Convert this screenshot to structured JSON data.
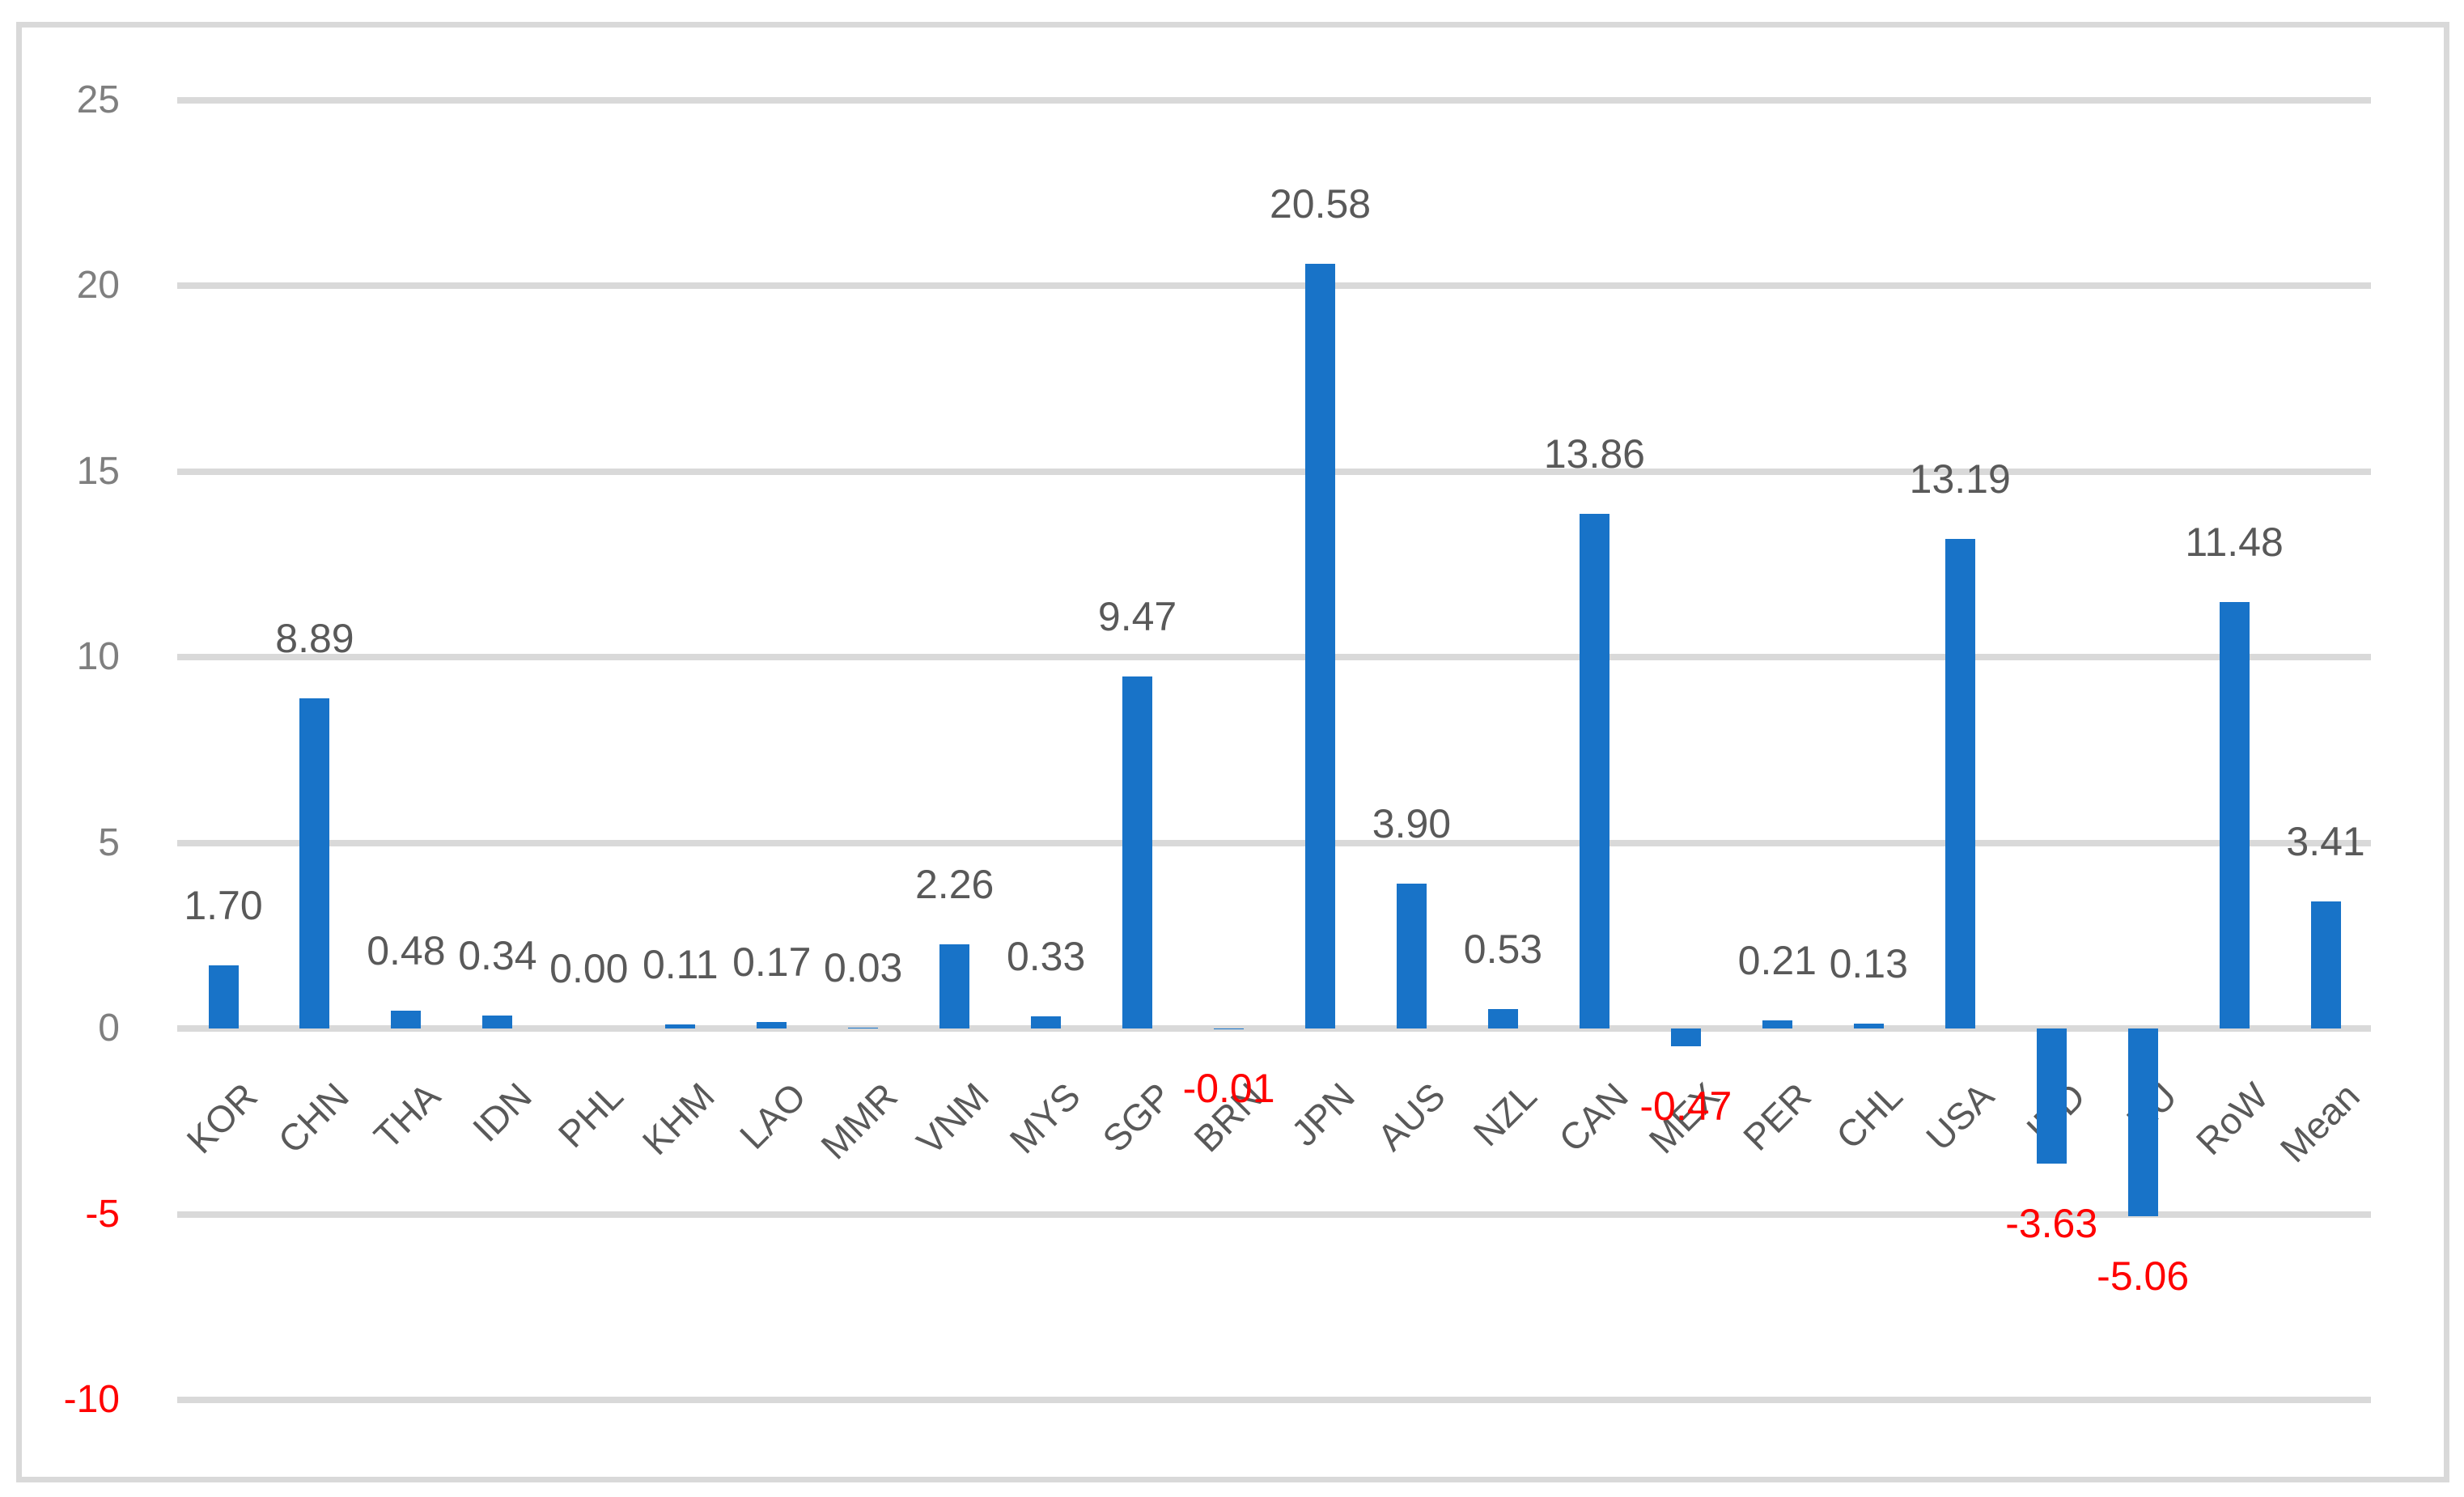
{
  "chart_data": {
    "type": "bar",
    "title": "",
    "xlabel": "",
    "ylabel": "",
    "categories": [
      "KOR",
      "CHN",
      "THA",
      "IDN",
      "PHL",
      "KHM",
      "LAO",
      "MMR",
      "VNM",
      "MYS",
      "SGP",
      "BRN",
      "JPN",
      "AUS",
      "NZL",
      "CAN",
      "MEX",
      "PER",
      "CHL",
      "USA",
      "IND",
      "EU",
      "RoW",
      "Mean"
    ],
    "values": [
      1.7,
      8.89,
      0.48,
      0.34,
      0.0,
      0.11,
      0.17,
      0.03,
      2.26,
      0.33,
      9.47,
      -0.01,
      20.58,
      3.9,
      0.53,
      13.86,
      -0.47,
      0.21,
      0.13,
      13.19,
      -3.63,
      -5.06,
      11.48,
      3.41
    ],
    "value_labels": [
      "1.70",
      "8.89",
      "0.48",
      "0.34",
      "0.00",
      "0.11",
      "0.17",
      "0.03",
      "2.26",
      "0.33",
      "9.47",
      "-0.01",
      "20.58",
      "3.90",
      "0.53",
      "13.86",
      "-0.47",
      "0.21",
      "0.13",
      "13.19",
      "-3.63",
      "-5.06",
      "11.48",
      "3.41"
    ],
    "ylim": [
      -10,
      25
    ],
    "yticks": [
      25,
      20,
      15,
      10,
      5,
      0,
      -5,
      -10
    ],
    "ytick_labels": [
      "25",
      "20",
      "15",
      "10",
      "5",
      "0",
      "-5",
      "-10"
    ],
    "grid": true,
    "legend": false,
    "colors": {
      "bar": "#1873C8",
      "gridline": "#D9D9D9",
      "frame_border": "#D9D9D9",
      "axis_label": "#7F7F7F",
      "axis_label_negative": "#FF0000",
      "data_label": "#595959",
      "data_label_negative": "#FF0000",
      "category_label": "#595959",
      "background": "#FFFFFF"
    }
  }
}
